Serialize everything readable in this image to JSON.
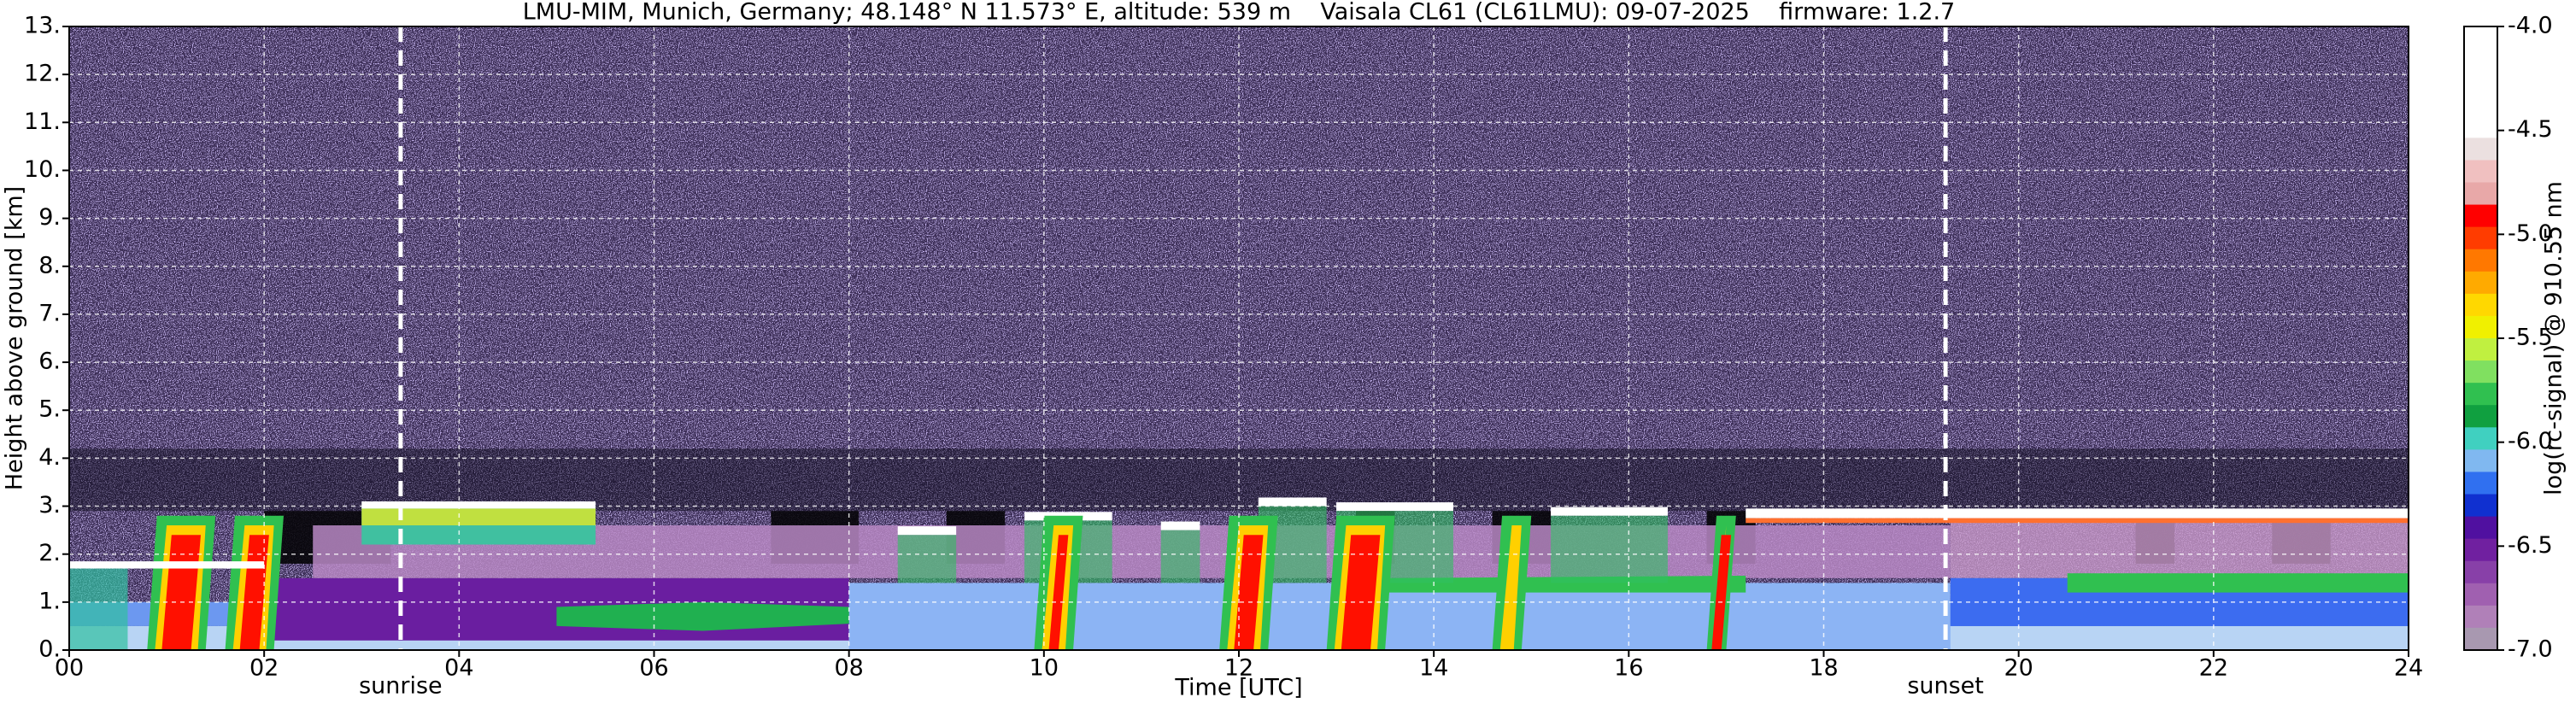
{
  "chart_data": {
    "type": "heatmap",
    "title": "LMU-MIM, Munich, Germany; 48.148° N 11.573° E, altitude: 539 m    Vaisala CL61 (CL61LMU): 09-07-2025    firmware: 1.2.7",
    "xlabel": "Time [UTC]",
    "ylabel": "Height above ground [km]",
    "xlim": [
      0,
      24
    ],
    "ylim": [
      0,
      13
    ],
    "xticks": [
      {
        "value": 0,
        "label": "00"
      },
      {
        "value": 2,
        "label": "02"
      },
      {
        "value": 4,
        "label": "04"
      },
      {
        "value": 6,
        "label": "06"
      },
      {
        "value": 8,
        "label": "08"
      },
      10,
      12,
      14,
      16,
      18,
      20,
      22,
      24
    ],
    "yticks": [
      {
        "value": 0,
        "label": "0."
      },
      {
        "value": 1,
        "label": "1."
      },
      {
        "value": 2,
        "label": "2."
      },
      {
        "value": 3,
        "label": "3."
      },
      {
        "value": 4,
        "label": "4."
      },
      {
        "value": 5,
        "label": "5."
      },
      {
        "value": 6,
        "label": "6."
      },
      {
        "value": 7,
        "label": "7."
      },
      {
        "value": 8,
        "label": "8."
      },
      {
        "value": 9,
        "label": "9."
      },
      {
        "value": 10,
        "label": "10."
      },
      {
        "value": 11,
        "label": "11."
      },
      {
        "value": 12,
        "label": "12."
      },
      {
        "value": 13,
        "label": "13."
      }
    ],
    "grid": true,
    "annotations": [
      {
        "text": "sunrise",
        "x": 3.4
      },
      {
        "text": "sunset",
        "x": 19.25
      }
    ],
    "colorbar": {
      "label": "log(rc-signal) @ 910.55 nm",
      "lim": [
        -7,
        -4
      ],
      "ticks": [
        {
          "value": -4,
          "label": "-4.0"
        },
        -4.5,
        {
          "value": -5,
          "label": "-5.0"
        },
        -5.5,
        {
          "value": -6,
          "label": "-6.0"
        },
        -6.5,
        {
          "value": -7,
          "label": "-7.0"
        }
      ],
      "colors": [
        "#ffffff",
        "#ffffff",
        "#ffffff",
        "#ffffff",
        "#ffffff",
        "#ebe0e0",
        "#f0c0c0",
        "#e8a8a8",
        "#ff0000",
        "#ff3c00",
        "#ff7800",
        "#ffaa00",
        "#ffd800",
        "#f0f000",
        "#c0f040",
        "#80e060",
        "#30c050",
        "#10a040",
        "#40d0c0",
        "#80b8f0",
        "#3070f0",
        "#1030d0",
        "#5010a0",
        "#7020a0",
        "#8840a8",
        "#a060b0",
        "#b080b8",
        "#a898b0"
      ]
    }
  }
}
